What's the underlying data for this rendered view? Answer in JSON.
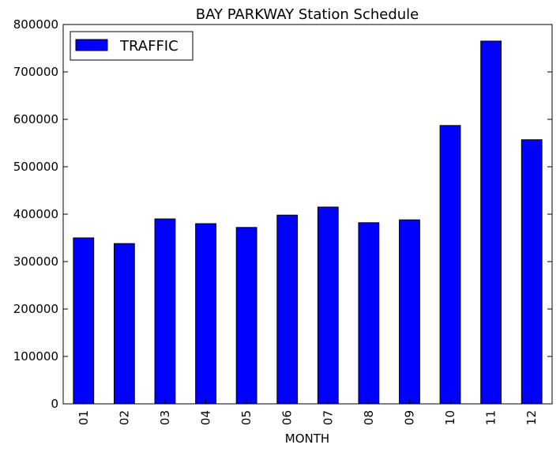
{
  "chart_data": {
    "type": "bar",
    "title": "BAY PARKWAY Station Schedule",
    "xlabel": "MONTH",
    "ylabel": "",
    "categories": [
      "01",
      "02",
      "03",
      "04",
      "05",
      "06",
      "07",
      "08",
      "09",
      "10",
      "11",
      "12"
    ],
    "series": [
      {
        "name": "TRAFFIC",
        "values": [
          350000,
          338000,
          390000,
          380000,
          372000,
          398000,
          415000,
          382000,
          388000,
          587000,
          765000,
          557000
        ]
      }
    ],
    "ylim": [
      0,
      800000
    ],
    "yticks": [
      0,
      100000,
      200000,
      300000,
      400000,
      500000,
      600000,
      700000,
      800000
    ],
    "grid": false,
    "legend_position": "top-left",
    "colors": {
      "bar": "#0000ff",
      "edge": "#000000"
    }
  }
}
